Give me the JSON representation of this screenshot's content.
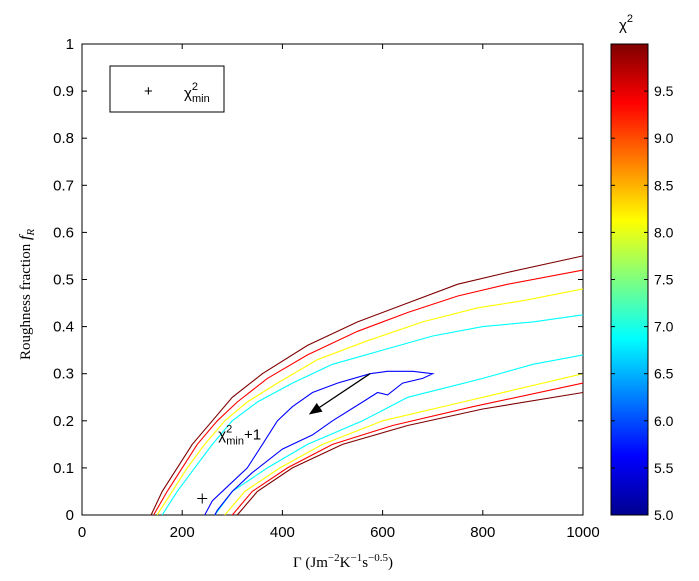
{
  "chart_data": {
    "type": "contour",
    "xlabel": {
      "main": "Γ (Jm",
      "exp1": "−2",
      "mid1": "K",
      "exp2": "−1",
      "mid2": "s",
      "exp3": "−0.5",
      "end": ")"
    },
    "ylabel": {
      "main": "Roughness fraction ",
      "symbol": "f",
      "subscript": "R"
    },
    "xlim": [
      0,
      1000
    ],
    "ylim": [
      0,
      1
    ],
    "xticks": [
      "0",
      "200",
      "400",
      "600",
      "800",
      "1000"
    ],
    "yticks": [
      "0",
      "0.1",
      "0.2",
      "0.3",
      "0.4",
      "0.5",
      "0.6",
      "0.7",
      "0.8",
      "0.9",
      "1"
    ],
    "colorbar": {
      "title_base": "χ",
      "title_exp": "2",
      "range": [
        5.0,
        10.0
      ],
      "ticks": [
        "5.0",
        "5.5",
        "6.0",
        "6.5",
        "7.0",
        "7.5",
        "8.0",
        "8.5",
        "9.0",
        "9.5"
      ],
      "tick_values": [
        5.0,
        5.5,
        6.0,
        6.5,
        7.0,
        7.5,
        8.0,
        8.5,
        9.0,
        9.5
      ],
      "stops": [
        "#00008f",
        "#0000ff",
        "#007fff",
        "#00ffff",
        "#7fff7f",
        "#ffff00",
        "#ff7f00",
        "#ff0000",
        "#7f0000"
      ]
    },
    "legend": {
      "placement": "top-left",
      "marker": "+",
      "label_base": "χ",
      "label_sup": "2",
      "label_sub": "min"
    },
    "annotation": {
      "label_base": "χ",
      "label_sup": "2",
      "label_sub": "min",
      "label_tail": "+1",
      "arrow_from": [
        575,
        0.3
      ],
      "arrow_to": [
        455,
        0.215
      ],
      "text_at": [
        272,
        0.16
      ]
    },
    "min_point": [
      240,
      0.035
    ],
    "contours": [
      {
        "color": "#7f0000",
        "lines": [
          [
            [
              138,
              0
            ],
            [
              160,
              0.05
            ],
            [
              190,
              0.1
            ],
            [
              220,
              0.15
            ],
            [
              260,
              0.2
            ],
            [
              300,
              0.25
            ],
            [
              360,
              0.3
            ],
            [
              450,
              0.36
            ],
            [
              550,
              0.41
            ],
            [
              650,
              0.45
            ],
            [
              750,
              0.49
            ],
            [
              850,
              0.515
            ],
            [
              1000,
              0.55
            ]
          ],
          [
            [
              310,
              0
            ],
            [
              350,
              0.05
            ],
            [
              420,
              0.1
            ],
            [
              520,
              0.15
            ],
            [
              650,
              0.19
            ],
            [
              800,
              0.225
            ],
            [
              1000,
              0.26
            ]
          ]
        ]
      },
      {
        "color": "#ff0000",
        "lines": [
          [
            [
              143,
              0
            ],
            [
              170,
              0.05
            ],
            [
              200,
              0.1
            ],
            [
              230,
              0.15
            ],
            [
              270,
              0.2
            ],
            [
              310,
              0.24
            ],
            [
              370,
              0.29
            ],
            [
              450,
              0.34
            ],
            [
              550,
              0.39
            ],
            [
              650,
              0.43
            ],
            [
              750,
              0.465
            ],
            [
              850,
              0.49
            ],
            [
              1000,
              0.52
            ]
          ],
          [
            [
              300,
              0
            ],
            [
              340,
              0.05
            ],
            [
              410,
              0.1
            ],
            [
              500,
              0.15
            ],
            [
              620,
              0.19
            ],
            [
              780,
              0.23
            ],
            [
              1000,
              0.28
            ]
          ]
        ]
      },
      {
        "color": "#ffff00",
        "lines": [
          [
            [
              150,
              0
            ],
            [
              180,
              0.05
            ],
            [
              210,
              0.1
            ],
            [
              245,
              0.15
            ],
            [
              285,
              0.2
            ],
            [
              330,
              0.24
            ],
            [
              390,
              0.28
            ],
            [
              470,
              0.33
            ],
            [
              570,
              0.37
            ],
            [
              680,
              0.41
            ],
            [
              790,
              0.44
            ],
            [
              880,
              0.455
            ],
            [
              1000,
              0.48
            ]
          ],
          [
            [
              285,
              0
            ],
            [
              325,
              0.05
            ],
            [
              395,
              0.1
            ],
            [
              480,
              0.15
            ],
            [
              600,
              0.2
            ],
            [
              760,
              0.24
            ],
            [
              1000,
              0.3
            ]
          ]
        ]
      },
      {
        "color": "#00ffff",
        "lines": [
          [
            [
              160,
              0
            ],
            [
              190,
              0.05
            ],
            [
              225,
              0.1
            ],
            [
              260,
              0.15
            ],
            [
              300,
              0.2
            ],
            [
              350,
              0.24
            ],
            [
              420,
              0.28
            ],
            [
              500,
              0.32
            ],
            [
              600,
              0.35
            ],
            [
              700,
              0.38
            ],
            [
              800,
              0.4
            ],
            [
              900,
              0.41
            ],
            [
              1000,
              0.425
            ]
          ],
          [
            [
              265,
              0
            ],
            [
              300,
              0.05
            ],
            [
              370,
              0.1
            ],
            [
              450,
              0.15
            ],
            [
              560,
              0.2
            ],
            [
              650,
              0.25
            ],
            [
              800,
              0.29
            ],
            [
              900,
              0.32
            ],
            [
              1000,
              0.34
            ]
          ]
        ]
      },
      {
        "color": "#0000ff",
        "lines": [
          [
            [
              245,
              0
            ],
            [
              260,
              0.03
            ],
            [
              290,
              0.06
            ],
            [
              330,
              0.1
            ],
            [
              360,
              0.15
            ],
            [
              390,
              0.2
            ],
            [
              420,
              0.23
            ],
            [
              460,
              0.26
            ],
            [
              510,
              0.28
            ],
            [
              575,
              0.3
            ],
            [
              610,
              0.305
            ],
            [
              660,
              0.305
            ],
            [
              700,
              0.3
            ],
            [
              680,
              0.29
            ],
            [
              640,
              0.28
            ],
            [
              610,
              0.255
            ],
            [
              590,
              0.26
            ],
            [
              560,
              0.24
            ],
            [
              500,
              0.2
            ],
            [
              460,
              0.17
            ],
            [
              400,
              0.14
            ],
            [
              340,
              0.09
            ],
            [
              300,
              0.05
            ],
            [
              270,
              0.01
            ],
            [
              265,
              0
            ]
          ]
        ]
      }
    ]
  }
}
